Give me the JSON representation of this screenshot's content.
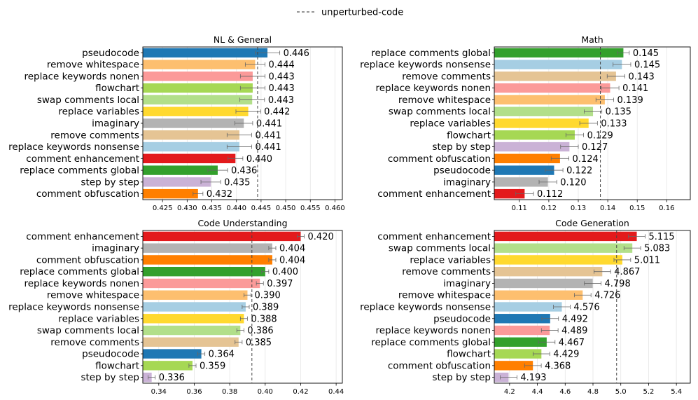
{
  "legend": {
    "label": "unperturbed-code"
  },
  "colors": {
    "pseudocode": "#1f78b4",
    "remove whitespace": "#fdbf6f",
    "replace keywords nonen": "#fb9a99",
    "flowchart": "#a6d854",
    "swap comments local": "#b2df8a",
    "replace variables": "#ffd92f",
    "imaginary": "#b3b3b3",
    "remove comments": "#e5c494",
    "replace keywords nonsense": "#a6cee3",
    "comment enhancement": "#e31a1c",
    "replace comments global": "#33a02c",
    "step by step": "#cab2d6",
    "comment obfuscation": "#ff7f00"
  },
  "chart_data": [
    {
      "type": "bar",
      "orientation": "horizontal",
      "title": "NL & General",
      "categories": [
        "pseudocode",
        "remove whitespace",
        "replace keywords nonen",
        "flowchart",
        "swap comments local",
        "replace variables",
        "imaginary",
        "remove comments",
        "replace keywords nonsense",
        "comment enhancement",
        "replace comments global",
        "step by step",
        "comment obfuscation"
      ],
      "values": [
        0.4463,
        0.4438,
        0.4433,
        0.4433,
        0.4432,
        0.4424,
        0.4415,
        0.4406,
        0.4406,
        0.4398,
        0.4362,
        0.4348,
        0.4322
      ],
      "labels": [
        "0.446",
        "0.444",
        "0.443",
        "0.443",
        "0.443",
        "0.442",
        "0.441",
        "0.441",
        "0.441",
        "0.440",
        "0.436",
        "0.435",
        "0.432"
      ],
      "errors": [
        0.0025,
        0.002,
        0.0025,
        0.0025,
        0.0025,
        0.0025,
        0.0018,
        0.0025,
        0.0025,
        0.0015,
        0.002,
        0.002,
        0.001
      ],
      "baseline": 0.4443,
      "xlim": [
        0.421,
        0.4615
      ],
      "xticks": [
        0.425,
        0.43,
        0.435,
        0.44,
        0.445,
        0.45,
        0.455,
        0.46
      ],
      "xtick_labels": [
        "0.425",
        "0.430",
        "0.435",
        "0.440",
        "0.445",
        "0.450",
        "0.455",
        "0.460"
      ]
    },
    {
      "type": "bar",
      "orientation": "horizontal",
      "title": "Math",
      "categories": [
        "replace comments global",
        "replace keywords nonsense",
        "remove comments",
        "replace keywords nonen",
        "remove whitespace",
        "swap comments local",
        "replace variables",
        "flowchart",
        "step by step",
        "comment obfuscation",
        "pseudocode",
        "imaginary",
        "comment enhancement"
      ],
      "values": [
        0.1453,
        0.1448,
        0.1428,
        0.1408,
        0.139,
        0.135,
        0.1335,
        0.1288,
        0.127,
        0.1238,
        0.1218,
        0.1197,
        0.1118
      ],
      "labels": [
        "0.145",
        "0.145",
        "0.143",
        "0.141",
        "0.139",
        "0.135",
        "0.133",
        "0.129",
        "0.127",
        "0.124",
        "0.122",
        "0.120",
        "0.112"
      ],
      "errors": [
        0.002,
        0.003,
        0.003,
        0.003,
        0.003,
        0.003,
        0.003,
        0.003,
        0.003,
        0.003,
        0.003,
        0.003,
        0.003
      ],
      "baseline": 0.1375,
      "xlim": [
        0.1015,
        0.168
      ],
      "xticks": [
        0.11,
        0.12,
        0.13,
        0.14,
        0.15,
        0.16
      ],
      "xtick_labels": [
        "0.11",
        "0.12",
        "0.13",
        "0.14",
        "0.15",
        "0.16"
      ]
    },
    {
      "type": "bar",
      "orientation": "horizontal",
      "title": "Code Understanding",
      "categories": [
        "comment enhancement",
        "imaginary",
        "comment obfuscation",
        "replace comments global",
        "replace keywords nonen",
        "remove whitespace",
        "replace keywords nonsense",
        "replace variables",
        "swap comments local",
        "remove comments",
        "pseudocode",
        "flowchart",
        "step by step"
      ],
      "values": [
        0.42,
        0.404,
        0.404,
        0.4,
        0.397,
        0.39,
        0.389,
        0.388,
        0.386,
        0.385,
        0.364,
        0.359,
        0.336
      ],
      "labels": [
        "0.420",
        "0.404",
        "0.404",
        "0.400",
        "0.397",
        "0.390",
        "0.389",
        "0.388",
        "0.386",
        "0.385",
        "0.364",
        "0.359",
        "0.336"
      ],
      "errors": [
        0.002,
        0.002,
        0.002,
        0.002,
        0.002,
        0.002,
        0.002,
        0.002,
        0.002,
        0.002,
        0.002,
        0.002,
        0.002
      ],
      "baseline": 0.3925,
      "xlim": [
        0.331,
        0.4435
      ],
      "xticks": [
        0.34,
        0.36,
        0.38,
        0.4,
        0.42,
        0.44
      ],
      "xtick_labels": [
        "0.34",
        "0.36",
        "0.38",
        "0.40",
        "0.42",
        "0.44"
      ]
    },
    {
      "type": "bar",
      "orientation": "horizontal",
      "title": "Code Generation",
      "categories": [
        "comment enhancement",
        "swap comments local",
        "replace variables",
        "remove comments",
        "imaginary",
        "remove whitespace",
        "replace keywords nonsense",
        "pseudocode",
        "replace keywords nonen",
        "replace comments global",
        "flowchart",
        "comment obfuscation",
        "step by step"
      ],
      "values": [
        5.115,
        5.083,
        5.011,
        4.867,
        4.798,
        4.726,
        4.576,
        4.492,
        4.489,
        4.467,
        4.429,
        4.368,
        4.193
      ],
      "labels": [
        "5.115",
        "5.083",
        "5.011",
        "4.867",
        "4.798",
        "4.726",
        "4.576",
        "4.492",
        "4.489",
        "4.467",
        "4.429",
        "4.368",
        "4.193"
      ],
      "errors": [
        0.06,
        0.06,
        0.06,
        0.06,
        0.06,
        0.06,
        0.06,
        0.06,
        0.06,
        0.06,
        0.06,
        0.06,
        0.06
      ],
      "baseline": 4.97,
      "xlim": [
        4.09,
        5.5
      ],
      "xticks": [
        4.2,
        4.4,
        4.6,
        4.8,
        5.0,
        5.2,
        5.4
      ],
      "xtick_labels": [
        "4.2",
        "4.4",
        "4.6",
        "4.8",
        "5.0",
        "5.2",
        "5.4"
      ]
    }
  ]
}
